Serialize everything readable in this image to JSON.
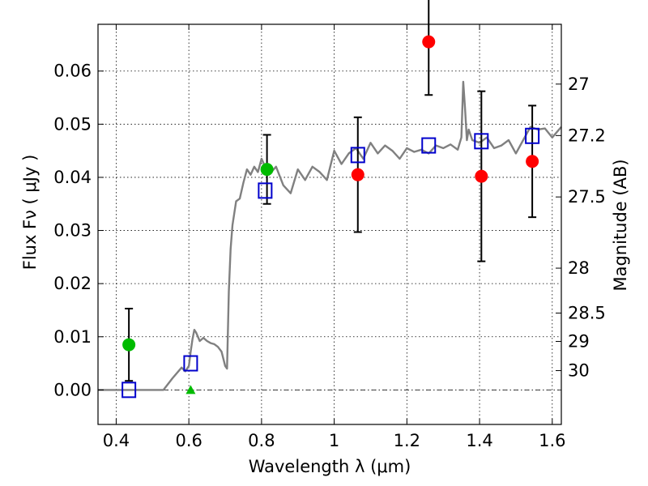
{
  "chart_data": {
    "type": "scatter",
    "xlabel": "Wavelength  λ (μm)",
    "ylabel": "Flux  Fν  ( μJy )",
    "y2label": "Magnitude (AB)",
    "xlim": [
      0.35,
      1.625
    ],
    "ylim": [
      -0.0065,
      0.0688
    ],
    "xticks": [
      0.4,
      0.6,
      0.8,
      1.0,
      1.2,
      1.4,
      1.6
    ],
    "xtick_labels": [
      "0.4",
      "0.6",
      "0.8",
      "1",
      "1.2",
      "1.4",
      "1.6"
    ],
    "yticks": [
      0.0,
      0.01,
      0.02,
      0.03,
      0.04,
      0.05,
      0.06
    ],
    "ytick_labels": [
      "0.00",
      "0.01",
      "0.02",
      "0.03",
      "0.04",
      "0.05",
      "0.06"
    ],
    "mag_ticks": [
      27,
      27.2,
      27.5,
      28,
      28.5,
      29,
      30
    ],
    "mag_tick_labels": [
      "27",
      "27.2",
      "27.5",
      "28",
      "28.5",
      "29",
      "30"
    ],
    "grid": true,
    "zero_line": true,
    "colors": {
      "model": "#808080",
      "green": "#00bb00",
      "red": "#ff0000",
      "square": "#0000cc",
      "errorbar": "#000000"
    },
    "model_sed": {
      "x": [
        0.35,
        0.53,
        0.555,
        0.58,
        0.59,
        0.6,
        0.605,
        0.61,
        0.615,
        0.62,
        0.63,
        0.64,
        0.65,
        0.66,
        0.67,
        0.68,
        0.69,
        0.7,
        0.705,
        0.71,
        0.715,
        0.72,
        0.73,
        0.74,
        0.75,
        0.76,
        0.77,
        0.78,
        0.79,
        0.8,
        0.82,
        0.84,
        0.86,
        0.88,
        0.9,
        0.92,
        0.94,
        0.96,
        0.98,
        1.0,
        1.02,
        1.04,
        1.06,
        1.08,
        1.1,
        1.12,
        1.14,
        1.16,
        1.18,
        1.2,
        1.22,
        1.24,
        1.26,
        1.28,
        1.3,
        1.32,
        1.34,
        1.35,
        1.355,
        1.36,
        1.365,
        1.37,
        1.38,
        1.4,
        1.42,
        1.44,
        1.46,
        1.48,
        1.5,
        1.52,
        1.54,
        1.56,
        1.58,
        1.6,
        1.625
      ],
      "y": [
        0.0,
        0.0,
        0.0022,
        0.0042,
        0.0035,
        0.0045,
        0.0072,
        0.0095,
        0.0113,
        0.0108,
        0.0092,
        0.0098,
        0.0092,
        0.0088,
        0.0086,
        0.0081,
        0.0072,
        0.0045,
        0.004,
        0.0185,
        0.0265,
        0.031,
        0.0355,
        0.036,
        0.039,
        0.0415,
        0.0405,
        0.042,
        0.041,
        0.0435,
        0.0405,
        0.042,
        0.0385,
        0.037,
        0.0415,
        0.0395,
        0.042,
        0.041,
        0.0395,
        0.045,
        0.0425,
        0.0445,
        0.0455,
        0.0435,
        0.0465,
        0.0445,
        0.046,
        0.045,
        0.0435,
        0.0455,
        0.0448,
        0.0452,
        0.0445,
        0.046,
        0.0455,
        0.0462,
        0.0452,
        0.0475,
        0.058,
        0.053,
        0.047,
        0.049,
        0.047,
        0.0465,
        0.0475,
        0.0455,
        0.046,
        0.047,
        0.0445,
        0.047,
        0.0495,
        0.049,
        0.0492,
        0.0475,
        0.0495
      ]
    },
    "observed_green": [
      {
        "x": 0.435,
        "y": 0.0085,
        "err": 0.0068
      },
      {
        "x": 0.605,
        "y": 0.0,
        "err": 0.0,
        "shape": "triangle"
      },
      {
        "x": 0.815,
        "y": 0.0415,
        "err": 0.0065
      }
    ],
    "observed_red": [
      {
        "x": 1.065,
        "y": 0.0405,
        "err": 0.0108
      },
      {
        "x": 1.26,
        "y": 0.0655,
        "err": 0.01
      },
      {
        "x": 1.405,
        "y": 0.0402,
        "err": 0.016
      },
      {
        "x": 1.545,
        "y": 0.043,
        "err": 0.0105
      }
    ],
    "model_points": [
      {
        "x": 0.435,
        "y": 0.0
      },
      {
        "x": 0.605,
        "y": 0.005
      },
      {
        "x": 0.81,
        "y": 0.0375
      },
      {
        "x": 1.065,
        "y": 0.0442
      },
      {
        "x": 1.26,
        "y": 0.046
      },
      {
        "x": 1.405,
        "y": 0.0468
      },
      {
        "x": 1.545,
        "y": 0.0478
      }
    ]
  }
}
